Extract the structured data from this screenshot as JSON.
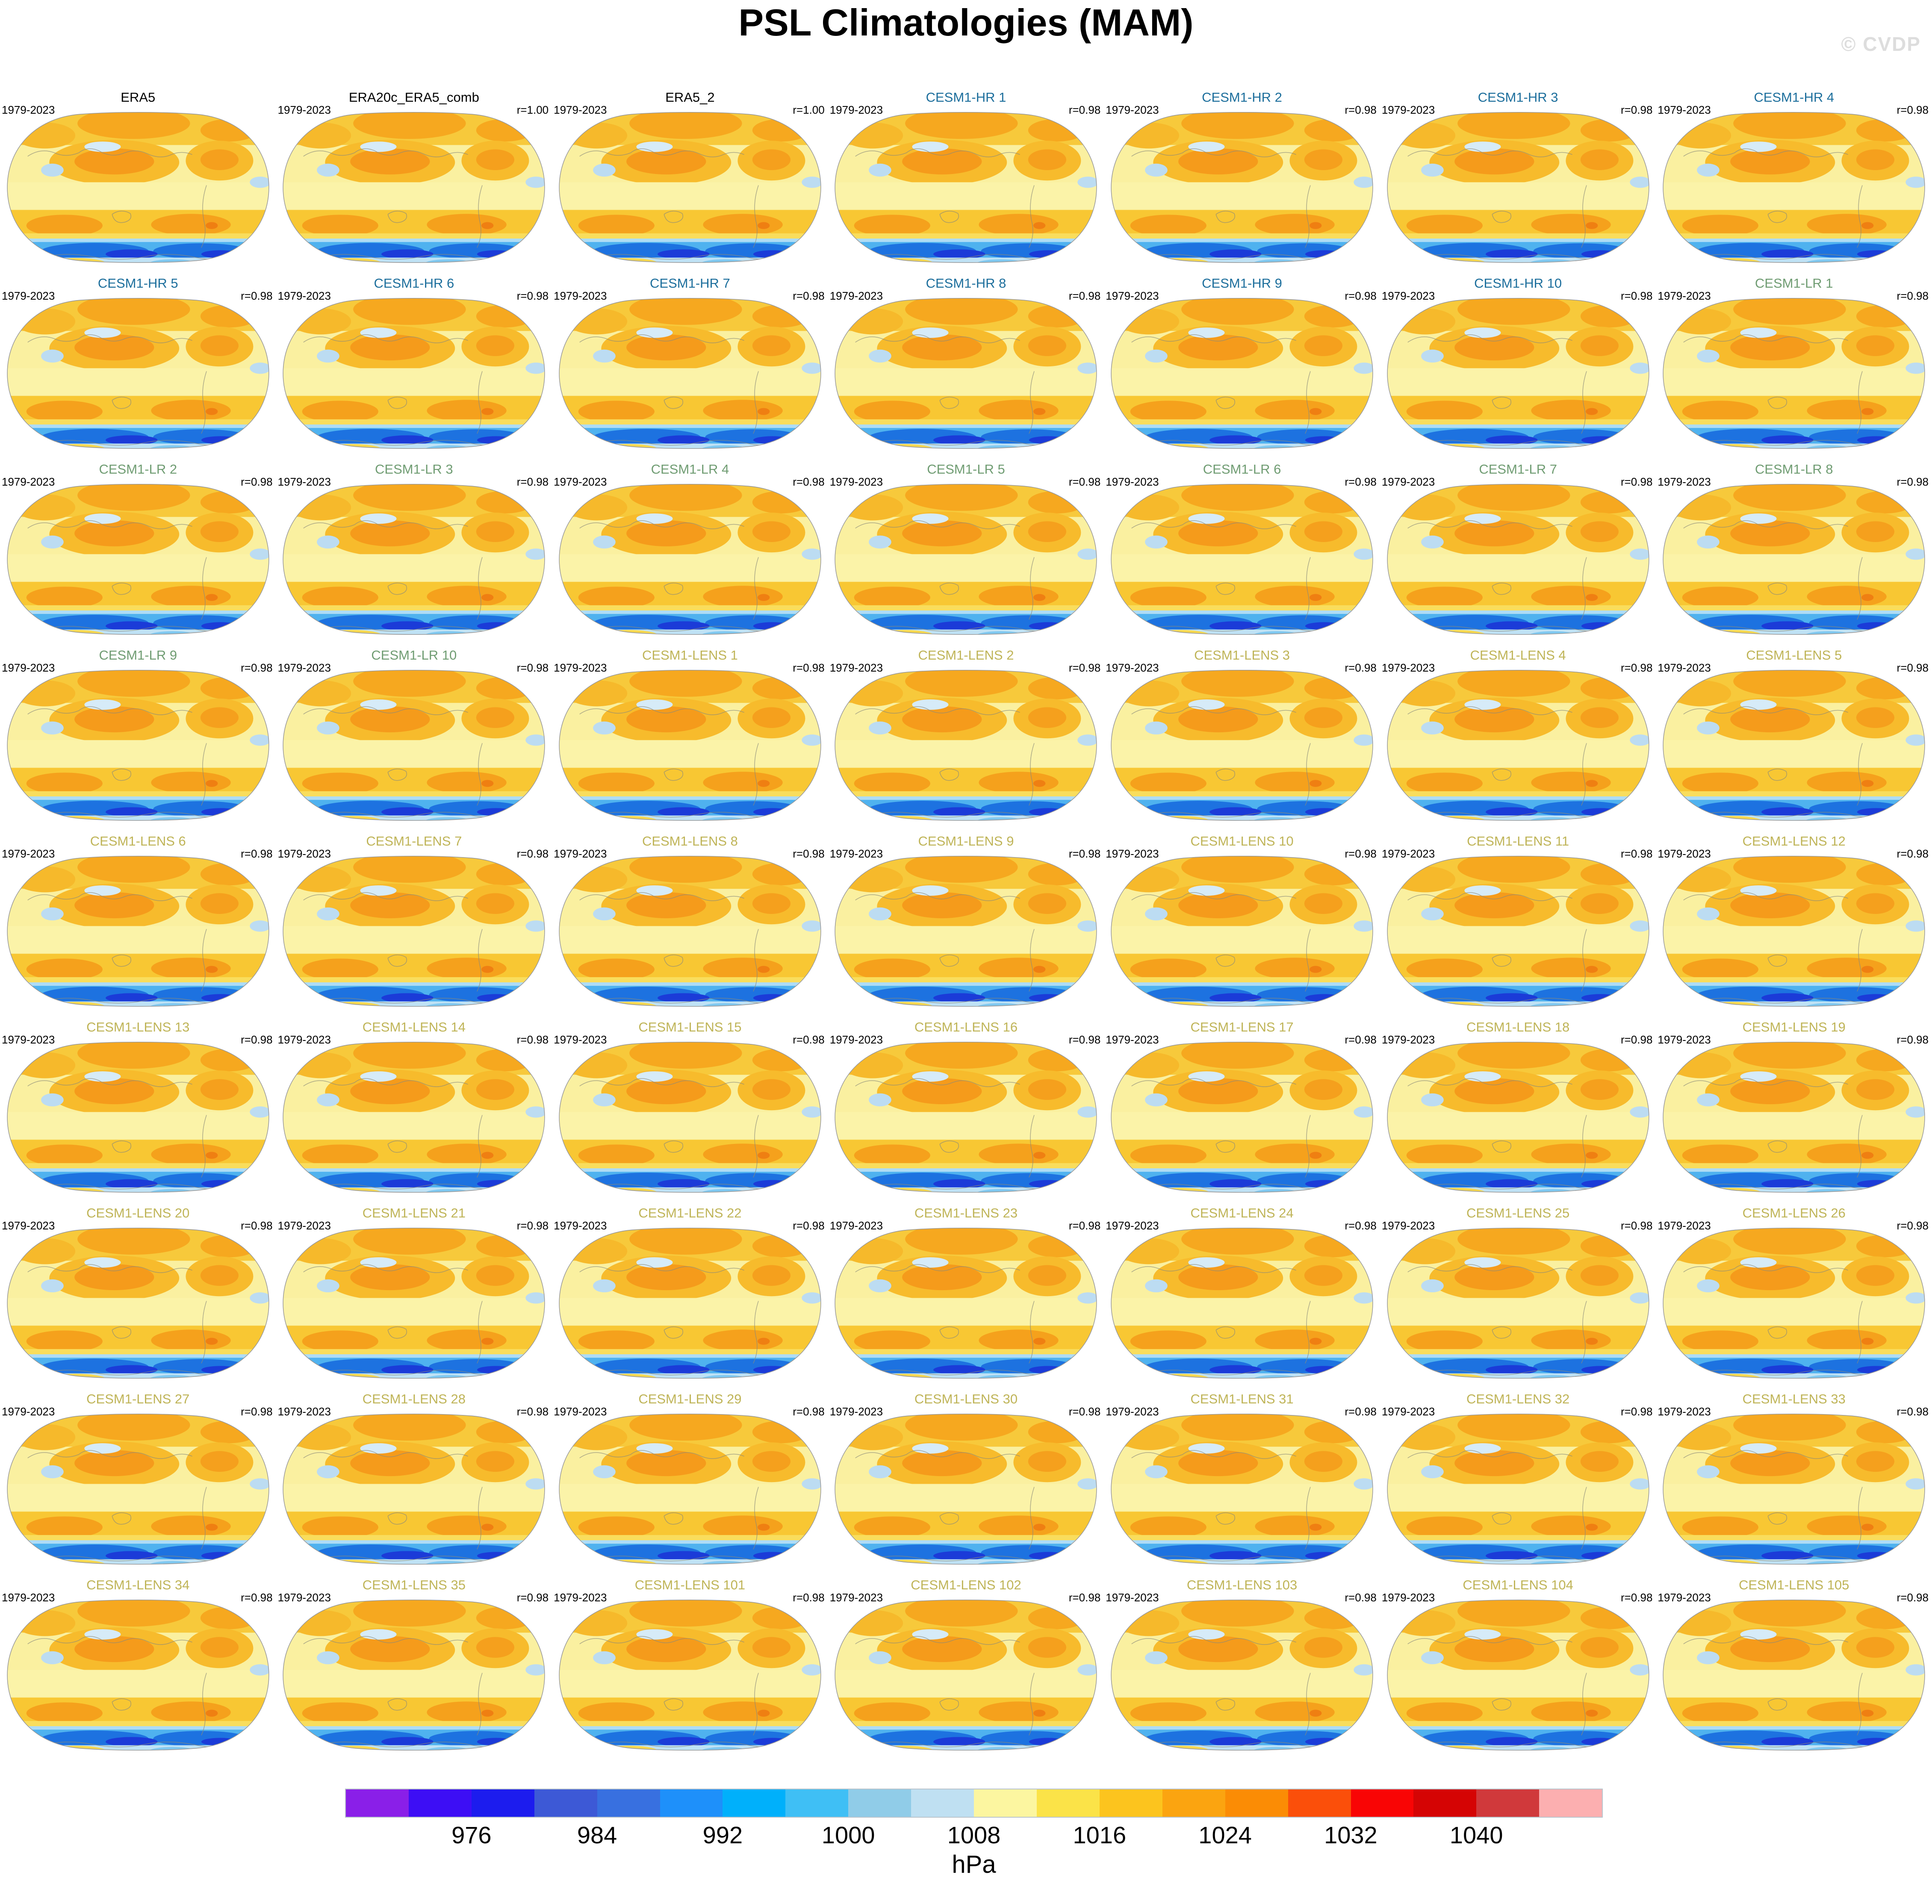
{
  "title": "PSL Climatologies (MAM)",
  "watermark": "© CVDP",
  "period_label": "1979-2023",
  "chart_data": {
    "type": "heatmap",
    "title": "PSL Climatologies (MAM)",
    "subtitle": "Sea level pressure climatology maps, March-April-May, 9x7 panel grid",
    "period": "1979-2023",
    "groups": {
      "obs": {
        "color": "#000000"
      },
      "hr": {
        "color": "#1C6E9C"
      },
      "lr": {
        "color": "#6F9C72"
      },
      "lens": {
        "color": "#BFB457"
      }
    },
    "panels": [
      {
        "title": "ERA5",
        "group": "obs",
        "r": ""
      },
      {
        "title": "ERA20c_ERA5_comb",
        "group": "obs",
        "r": "r=1.00"
      },
      {
        "title": "ERA5_2",
        "group": "obs",
        "r": "r=1.00"
      },
      {
        "title": "CESM1-HR 1",
        "group": "hr",
        "r": "r=0.98"
      },
      {
        "title": "CESM1-HR 2",
        "group": "hr",
        "r": "r=0.98"
      },
      {
        "title": "CESM1-HR 3",
        "group": "hr",
        "r": "r=0.98"
      },
      {
        "title": "CESM1-HR 4",
        "group": "hr",
        "r": "r=0.98"
      },
      {
        "title": "CESM1-HR 5",
        "group": "hr",
        "r": "r=0.98"
      },
      {
        "title": "CESM1-HR 6",
        "group": "hr",
        "r": "r=0.98"
      },
      {
        "title": "CESM1-HR 7",
        "group": "hr",
        "r": "r=0.98"
      },
      {
        "title": "CESM1-HR 8",
        "group": "hr",
        "r": "r=0.98"
      },
      {
        "title": "CESM1-HR 9",
        "group": "hr",
        "r": "r=0.98"
      },
      {
        "title": "CESM1-HR 10",
        "group": "hr",
        "r": "r=0.98"
      },
      {
        "title": "CESM1-LR 1",
        "group": "lr",
        "r": "r=0.98"
      },
      {
        "title": "CESM1-LR 2",
        "group": "lr",
        "r": "r=0.98"
      },
      {
        "title": "CESM1-LR 3",
        "group": "lr",
        "r": "r=0.98"
      },
      {
        "title": "CESM1-LR 4",
        "group": "lr",
        "r": "r=0.98"
      },
      {
        "title": "CESM1-LR 5",
        "group": "lr",
        "r": "r=0.98"
      },
      {
        "title": "CESM1-LR 6",
        "group": "lr",
        "r": "r=0.98"
      },
      {
        "title": "CESM1-LR 7",
        "group": "lr",
        "r": "r=0.98"
      },
      {
        "title": "CESM1-LR 8",
        "group": "lr",
        "r": "r=0.98"
      },
      {
        "title": "CESM1-LR 9",
        "group": "lr",
        "r": "r=0.98"
      },
      {
        "title": "CESM1-LR 10",
        "group": "lr",
        "r": "r=0.98"
      },
      {
        "title": "CESM1-LENS 1",
        "group": "lens",
        "r": "r=0.98"
      },
      {
        "title": "CESM1-LENS 2",
        "group": "lens",
        "r": "r=0.98"
      },
      {
        "title": "CESM1-LENS 3",
        "group": "lens",
        "r": "r=0.98"
      },
      {
        "title": "CESM1-LENS 4",
        "group": "lens",
        "r": "r=0.98"
      },
      {
        "title": "CESM1-LENS 5",
        "group": "lens",
        "r": "r=0.98"
      },
      {
        "title": "CESM1-LENS 6",
        "group": "lens",
        "r": "r=0.98"
      },
      {
        "title": "CESM1-LENS 7",
        "group": "lens",
        "r": "r=0.98"
      },
      {
        "title": "CESM1-LENS 8",
        "group": "lens",
        "r": "r=0.98"
      },
      {
        "title": "CESM1-LENS 9",
        "group": "lens",
        "r": "r=0.98"
      },
      {
        "title": "CESM1-LENS 10",
        "group": "lens",
        "r": "r=0.98"
      },
      {
        "title": "CESM1-LENS 11",
        "group": "lens",
        "r": "r=0.98"
      },
      {
        "title": "CESM1-LENS 12",
        "group": "lens",
        "r": "r=0.98"
      },
      {
        "title": "CESM1-LENS 13",
        "group": "lens",
        "r": "r=0.98"
      },
      {
        "title": "CESM1-LENS 14",
        "group": "lens",
        "r": "r=0.98"
      },
      {
        "title": "CESM1-LENS 15",
        "group": "lens",
        "r": "r=0.98"
      },
      {
        "title": "CESM1-LENS 16",
        "group": "lens",
        "r": "r=0.98"
      },
      {
        "title": "CESM1-LENS 17",
        "group": "lens",
        "r": "r=0.98"
      },
      {
        "title": "CESM1-LENS 18",
        "group": "lens",
        "r": "r=0.98"
      },
      {
        "title": "CESM1-LENS 19",
        "group": "lens",
        "r": "r=0.98"
      },
      {
        "title": "CESM1-LENS 20",
        "group": "lens",
        "r": "r=0.98"
      },
      {
        "title": "CESM1-LENS 21",
        "group": "lens",
        "r": "r=0.98"
      },
      {
        "title": "CESM1-LENS 22",
        "group": "lens",
        "r": "r=0.98"
      },
      {
        "title": "CESM1-LENS 23",
        "group": "lens",
        "r": "r=0.98"
      },
      {
        "title": "CESM1-LENS 24",
        "group": "lens",
        "r": "r=0.98"
      },
      {
        "title": "CESM1-LENS 25",
        "group": "lens",
        "r": "r=0.98"
      },
      {
        "title": "CESM1-LENS 26",
        "group": "lens",
        "r": "r=0.98"
      },
      {
        "title": "CESM1-LENS 27",
        "group": "lens",
        "r": "r=0.98"
      },
      {
        "title": "CESM1-LENS 28",
        "group": "lens",
        "r": "r=0.98"
      },
      {
        "title": "CESM1-LENS 29",
        "group": "lens",
        "r": "r=0.98"
      },
      {
        "title": "CESM1-LENS 30",
        "group": "lens",
        "r": "r=0.98"
      },
      {
        "title": "CESM1-LENS 31",
        "group": "lens",
        "r": "r=0.98"
      },
      {
        "title": "CESM1-LENS 32",
        "group": "lens",
        "r": "r=0.98"
      },
      {
        "title": "CESM1-LENS 33",
        "group": "lens",
        "r": "r=0.98"
      },
      {
        "title": "CESM1-LENS 34",
        "group": "lens",
        "r": "r=0.98"
      },
      {
        "title": "CESM1-LENS 35",
        "group": "lens",
        "r": "r=0.98"
      },
      {
        "title": "CESM1-LENS 101",
        "group": "lens",
        "r": "r=0.98"
      },
      {
        "title": "CESM1-LENS 102",
        "group": "lens",
        "r": "r=0.98"
      },
      {
        "title": "CESM1-LENS 103",
        "group": "lens",
        "r": "r=0.98"
      },
      {
        "title": "CESM1-LENS 104",
        "group": "lens",
        "r": "r=0.98"
      },
      {
        "title": "CESM1-LENS 105",
        "group": "lens",
        "r": "r=0.98"
      }
    ],
    "colorbar": {
      "unit": "hPa",
      "tick_labels": [
        "976",
        "984",
        "992",
        "1000",
        "1008",
        "1016",
        "1024",
        "1032",
        "1040"
      ],
      "tick_positions_pct": [
        10,
        20,
        30,
        40,
        50,
        60,
        70,
        80,
        90
      ],
      "colors": [
        "#8A1FE8",
        "#3D0EF5",
        "#1C1CEE",
        "#3D59D6",
        "#3870E0",
        "#1E90FA",
        "#00B0FB",
        "#3FBFF5",
        "#90CCE8",
        "#BFE0F2",
        "#FCF6A0",
        "#FBE348",
        "#FCC41E",
        "#FBA410",
        "#FB8C05",
        "#FB4F0A",
        "#F90505",
        "#D50404",
        "#D0393B",
        "#FCAFB0"
      ]
    },
    "layout": {
      "rows": 9,
      "columns": 7,
      "legend_position": "bottom"
    }
  }
}
